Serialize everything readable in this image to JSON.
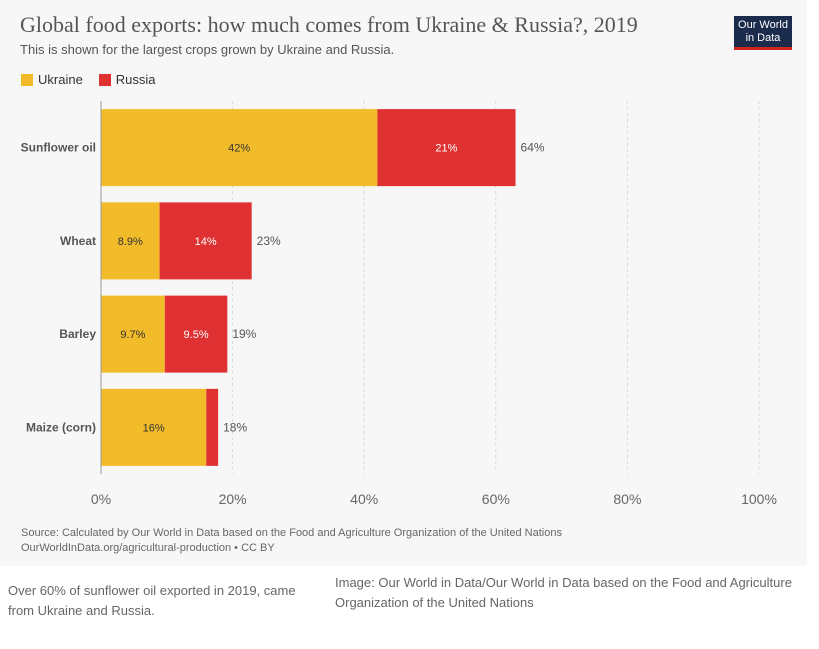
{
  "chart": {
    "title": "Global food exports: how much comes from Ukraine & Russia?, 2019",
    "subtitle": "This is shown for the largest crops grown by Ukraine and Russia.",
    "logo": {
      "line1": "Our World",
      "line2": "in Data"
    },
    "source_line1": "Source: Calculated by Our World in Data based on the Food and Agriculture Organization of the United Nations",
    "source_line2": "OurWorldInData.org/agricultural-production • CC BY"
  },
  "caption": {
    "left": "Over 60% of sunflower oil exported in 2019, came from Ukraine and Russia.",
    "right": "Image: Our World in Data/Our World in Data based on the Food and Agriculture Organization of the United Nations"
  },
  "colors": {
    "Ukraine": "#f2bb2a",
    "Russia": "#df3131"
  },
  "chart_data": {
    "type": "bar",
    "orientation": "horizontal",
    "stacked": true,
    "title": "Global food exports: how much comes from Ukraine & Russia?, 2019",
    "categories": [
      "Sunflower oil",
      "Wheat",
      "Barley",
      "Maize (corn)"
    ],
    "series": [
      {
        "name": "Ukraine",
        "values": [
          42,
          8.9,
          9.7,
          16
        ],
        "labels": [
          "42%",
          "8.9%",
          "9.7%",
          "16%"
        ]
      },
      {
        "name": "Russia",
        "values": [
          21,
          14,
          9.5,
          1.8
        ],
        "labels": [
          "21%",
          "14%",
          "9.5%",
          ""
        ]
      }
    ],
    "totals": [
      "64%",
      "23%",
      "19%",
      "18%"
    ],
    "xlim": [
      0,
      100
    ],
    "xticks": [
      "0%",
      "20%",
      "40%",
      "60%",
      "80%",
      "100%"
    ],
    "xlabel": "",
    "ylabel": "",
    "grid": true,
    "legend_position": "top-left"
  }
}
